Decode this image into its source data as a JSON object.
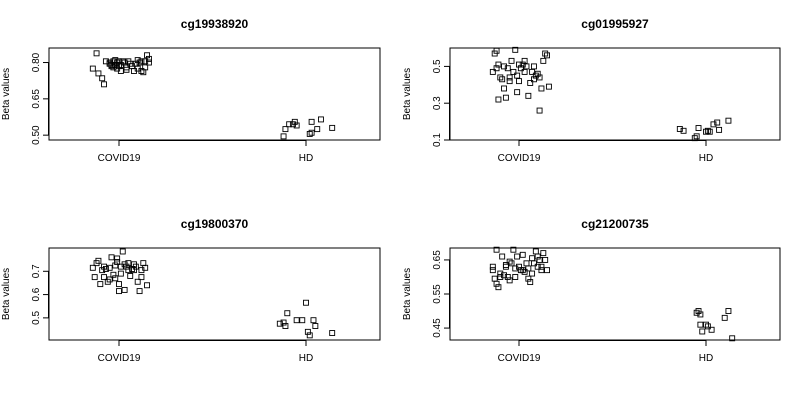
{
  "chart_data": [
    {
      "type": "scatter",
      "title": "cg19938920",
      "ylabel": "Beta values",
      "categories": [
        "COVID19",
        "HD"
      ],
      "yticks": [
        "0.50",
        "0.65",
        "0.80"
      ],
      "ylim": [
        0.48,
        0.86
      ],
      "series": [
        {
          "category": "COVID19",
          "points": [
            [
              0.88,
              0.838
            ],
            [
              0.86,
              0.775
            ],
            [
              0.89,
              0.755
            ],
            [
              0.91,
              0.735
            ],
            [
              0.92,
              0.71
            ],
            [
              0.93,
              0.805
            ],
            [
              0.95,
              0.795
            ],
            [
              0.95,
              0.8
            ],
            [
              0.96,
              0.79
            ],
            [
              0.97,
              0.78
            ],
            [
              0.97,
              0.805
            ],
            [
              0.98,
              0.79
            ],
            [
              0.98,
              0.81
            ],
            [
              0.99,
              0.8
            ],
            [
              0.99,
              0.775
            ],
            [
              1.0,
              0.805
            ],
            [
              1.0,
              0.785
            ],
            [
              1.01,
              0.765
            ],
            [
              1.02,
              0.805
            ],
            [
              1.03,
              0.8
            ],
            [
              1.04,
              0.78
            ],
            [
              1.05,
              0.805
            ],
            [
              1.06,
              0.795
            ],
            [
              1.07,
              0.785
            ],
            [
              1.08,
              0.765
            ],
            [
              1.09,
              0.795
            ],
            [
              1.1,
              0.81
            ],
            [
              1.1,
              0.775
            ],
            [
              1.11,
              0.8
            ],
            [
              1.12,
              0.805
            ],
            [
              1.13,
              0.76
            ],
            [
              1.14,
              0.78
            ],
            [
              1.14,
              0.805
            ],
            [
              1.15,
              0.83
            ],
            [
              1.16,
              0.8
            ],
            [
              1.16,
              0.815
            ],
            [
              1.04,
              0.77
            ],
            [
              0.96,
              0.785
            ],
            [
              1.12,
              0.765
            ],
            [
              1.01,
              0.79
            ]
          ]
        },
        {
          "category": "HD",
          "points": [
            [
              1.88,
              0.495
            ],
            [
              1.89,
              0.525
            ],
            [
              1.91,
              0.545
            ],
            [
              1.93,
              0.545
            ],
            [
              1.94,
              0.555
            ],
            [
              1.95,
              0.54
            ],
            [
              2.02,
              0.505
            ],
            [
              2.03,
              0.51
            ],
            [
              2.03,
              0.555
            ],
            [
              2.06,
              0.525
            ],
            [
              2.08,
              0.565
            ],
            [
              2.14,
              0.53
            ]
          ]
        }
      ]
    },
    {
      "type": "scatter",
      "title": "cg01995927",
      "ylabel": "Beta values",
      "categories": [
        "COVID19",
        "HD"
      ],
      "yticks": [
        "0.1",
        "0.3",
        "0.5"
      ],
      "ylim": [
        0.1,
        0.6
      ],
      "series": [
        {
          "category": "COVID19",
          "points": [
            [
              0.86,
              0.47
            ],
            [
              0.87,
              0.57
            ],
            [
              0.88,
              0.585
            ],
            [
              0.88,
              0.49
            ],
            [
              0.89,
              0.51
            ],
            [
              0.89,
              0.32
            ],
            [
              0.9,
              0.44
            ],
            [
              0.91,
              0.43
            ],
            [
              0.92,
              0.5
            ],
            [
              0.92,
              0.38
            ],
            [
              0.93,
              0.33
            ],
            [
              0.94,
              0.49
            ],
            [
              0.95,
              0.42
            ],
            [
              0.96,
              0.53
            ],
            [
              0.97,
              0.47
            ],
            [
              0.98,
              0.59
            ],
            [
              0.99,
              0.36
            ],
            [
              1.0,
              0.42
            ],
            [
              1.01,
              0.49
            ],
            [
              1.02,
              0.51
            ],
            [
              1.03,
              0.53
            ],
            [
              1.04,
              0.5
            ],
            [
              1.05,
              0.34
            ],
            [
              1.06,
              0.41
            ],
            [
              1.07,
              0.47
            ],
            [
              1.08,
              0.5
            ],
            [
              1.09,
              0.45
            ],
            [
              1.1,
              0.46
            ],
            [
              1.11,
              0.44
            ],
            [
              1.12,
              0.38
            ],
            [
              1.13,
              0.53
            ],
            [
              1.14,
              0.57
            ],
            [
              1.15,
              0.56
            ],
            [
              1.16,
              0.39
            ],
            [
              1.11,
              0.26
            ],
            [
              0.99,
              0.45
            ],
            [
              1.03,
              0.47
            ],
            [
              0.95,
              0.44
            ],
            [
              1.08,
              0.43
            ],
            [
              1.0,
              0.51
            ]
          ]
        },
        {
          "category": "HD",
          "points": [
            [
              1.86,
              0.16
            ],
            [
              1.88,
              0.15
            ],
            [
              1.94,
              0.11
            ],
            [
              1.96,
              0.165
            ],
            [
              2.0,
              0.145
            ],
            [
              2.01,
              0.15
            ],
            [
              2.04,
              0.185
            ],
            [
              2.06,
              0.195
            ],
            [
              2.07,
              0.155
            ],
            [
              2.12,
              0.205
            ],
            [
              1.95,
              0.12
            ],
            [
              2.02,
              0.145
            ]
          ]
        }
      ]
    },
    {
      "type": "scatter",
      "title": "cg19800370",
      "ylabel": "Beta values",
      "categories": [
        "COVID19",
        "HD"
      ],
      "yticks": [
        "0.5",
        "0.6",
        "0.7"
      ],
      "ylim": [
        0.405,
        0.8
      ],
      "series": [
        {
          "category": "COVID19",
          "points": [
            [
              0.86,
              0.715
            ],
            [
              0.87,
              0.675
            ],
            [
              0.88,
              0.735
            ],
            [
              0.89,
              0.745
            ],
            [
              0.9,
              0.645
            ],
            [
              0.91,
              0.705
            ],
            [
              0.92,
              0.72
            ],
            [
              0.93,
              0.71
            ],
            [
              0.94,
              0.655
            ],
            [
              0.95,
              0.665
            ],
            [
              0.96,
              0.76
            ],
            [
              0.97,
              0.685
            ],
            [
              0.98,
              0.725
            ],
            [
              0.99,
              0.74
            ],
            [
              1.0,
              0.645
            ],
            [
              1.01,
              0.69
            ],
            [
              1.02,
              0.785
            ],
            [
              1.03,
              0.73
            ],
            [
              1.04,
              0.72
            ],
            [
              1.05,
              0.705
            ],
            [
              1.06,
              0.68
            ],
            [
              1.07,
              0.71
            ],
            [
              1.08,
              0.73
            ],
            [
              1.09,
              0.72
            ],
            [
              1.1,
              0.655
            ],
            [
              1.11,
              0.615
            ],
            [
              1.12,
              0.705
            ],
            [
              1.13,
              0.735
            ],
            [
              1.14,
              0.715
            ],
            [
              1.15,
              0.64
            ],
            [
              1.0,
              0.615
            ],
            [
              0.98,
              0.67
            ],
            [
              1.03,
              0.62
            ],
            [
              1.08,
              0.705
            ],
            [
              0.95,
              0.715
            ],
            [
              1.05,
              0.735
            ],
            [
              0.92,
              0.675
            ],
            [
              1.12,
              0.675
            ],
            [
              0.99,
              0.755
            ],
            [
              1.01,
              0.72
            ]
          ]
        },
        {
          "category": "HD",
          "points": [
            [
              1.86,
              0.475
            ],
            [
              1.88,
              0.48
            ],
            [
              1.89,
              0.465
            ],
            [
              1.9,
              0.52
            ],
            [
              1.95,
              0.49
            ],
            [
              1.98,
              0.49
            ],
            [
              2.0,
              0.565
            ],
            [
              2.02,
              0.425
            ],
            [
              2.04,
              0.49
            ],
            [
              2.05,
              0.465
            ],
            [
              2.14,
              0.435
            ],
            [
              2.01,
              0.44
            ]
          ]
        }
      ]
    },
    {
      "type": "scatter",
      "title": "cg21200735",
      "ylabel": "Beta values",
      "categories": [
        "COVID19",
        "HD"
      ],
      "yticks": [
        "0.45",
        "0.55",
        "0.65"
      ],
      "ylim": [
        0.415,
        0.685
      ],
      "series": [
        {
          "category": "COVID19",
          "points": [
            [
              0.86,
              0.63
            ],
            [
              0.86,
              0.62
            ],
            [
              0.87,
              0.595
            ],
            [
              0.88,
              0.68
            ],
            [
              0.88,
              0.58
            ],
            [
              0.89,
              0.57
            ],
            [
              0.9,
              0.6
            ],
            [
              0.91,
              0.66
            ],
            [
              0.92,
              0.605
            ],
            [
              0.93,
              0.63
            ],
            [
              0.94,
              0.6
            ],
            [
              0.95,
              0.645
            ],
            [
              0.96,
              0.64
            ],
            [
              0.97,
              0.68
            ],
            [
              0.98,
              0.625
            ],
            [
              0.99,
              0.66
            ],
            [
              1.0,
              0.63
            ],
            [
              1.01,
              0.62
            ],
            [
              1.02,
              0.665
            ],
            [
              1.03,
              0.615
            ],
            [
              1.04,
              0.64
            ],
            [
              1.05,
              0.625
            ],
            [
              1.06,
              0.585
            ],
            [
              1.07,
              0.655
            ],
            [
              1.08,
              0.64
            ],
            [
              1.09,
              0.675
            ],
            [
              1.1,
              0.66
            ],
            [
              1.11,
              0.65
            ],
            [
              1.12,
              0.63
            ],
            [
              1.13,
              0.67
            ],
            [
              1.14,
              0.65
            ],
            [
              1.15,
              0.62
            ],
            [
              0.95,
              0.59
            ],
            [
              1.05,
              0.595
            ],
            [
              0.9,
              0.61
            ],
            [
              1.1,
              0.63
            ],
            [
              0.98,
              0.6
            ],
            [
              1.02,
              0.62
            ],
            [
              0.93,
              0.635
            ],
            [
              1.07,
              0.61
            ],
            [
              1.12,
              0.62
            ]
          ]
        },
        {
          "category": "HD",
          "points": [
            [
              1.95,
              0.495
            ],
            [
              1.96,
              0.5
            ],
            [
              1.97,
              0.46
            ],
            [
              1.98,
              0.44
            ],
            [
              2.0,
              0.46
            ],
            [
              2.01,
              0.455
            ],
            [
              2.03,
              0.445
            ],
            [
              2.1,
              0.48
            ],
            [
              2.12,
              0.5
            ],
            [
              2.14,
              0.42
            ],
            [
              1.97,
              0.49
            ]
          ]
        }
      ]
    }
  ]
}
